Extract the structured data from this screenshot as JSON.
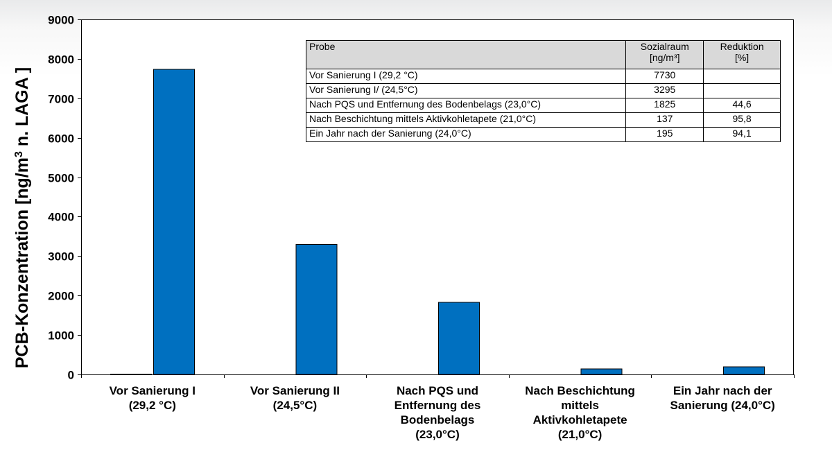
{
  "chart_data": {
    "type": "bar",
    "ylabel": "PCB-Konzentration [ng/m³ n. LAGA ]",
    "ylim": [
      0,
      9000
    ],
    "yticks": [
      0,
      1000,
      2000,
      3000,
      4000,
      5000,
      6000,
      7000,
      8000,
      9000
    ],
    "categories": [
      [
        "Vor Sanierung I",
        "(29,2 °C)"
      ],
      [
        "Vor Sanierung II",
        "(24,5°C)"
      ],
      [
        "Nach PQS und",
        "Entfernung des",
        "Bodenbelags",
        "(23,0°C)"
      ],
      [
        "Nach Beschichtung",
        "mittels",
        "Aktivkohletapete",
        "(21,0°C)"
      ],
      [
        "Ein Jahr nach der",
        "Sanierung (24,0°C)"
      ]
    ],
    "series": [
      {
        "values": [
          10,
          0,
          0,
          0,
          0
        ],
        "color": "#0070c0"
      },
      {
        "values": [
          7730,
          3295,
          1825,
          137,
          195
        ],
        "color": "#0070c0"
      }
    ],
    "grid": false,
    "legend": "none"
  },
  "table": {
    "headers": [
      [
        "Probe"
      ],
      [
        "Sozialraum",
        "[ng/m³]"
      ],
      [
        "Reduktion",
        "[%]"
      ]
    ],
    "rows": [
      [
        "Vor Sanierung I (29,2 °C)",
        "7730",
        ""
      ],
      [
        "Vor Sanierung I/ (24,5°C)",
        "3295",
        ""
      ],
      [
        "Nach PQS und Entfernung des Bodenbelags (23,0°C)",
        "1825",
        "44,6"
      ],
      [
        "Nach Beschichtung mittels Aktivkohletapete (21,0°C)",
        "137",
        "95,8"
      ],
      [
        "Ein Jahr nach der Sanierung (24,0°C)",
        "195",
        "94,1"
      ]
    ]
  }
}
